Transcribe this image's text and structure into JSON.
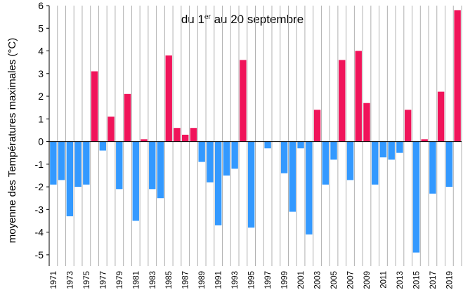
{
  "chart_data": {
    "type": "bar",
    "title_parts": [
      "du 1",
      "er",
      " au 20 septembre"
    ],
    "y_label": "moyenne des Températures maximales (°C)",
    "categories": [
      "1971",
      null,
      "1973",
      null,
      "1975",
      null,
      "1977",
      null,
      "1979",
      null,
      "1981",
      null,
      "1983",
      null,
      "1985",
      null,
      "1987",
      null,
      "1989",
      null,
      "1991",
      null,
      "1993",
      null,
      "1995",
      null,
      "1997",
      null,
      "1999",
      null,
      "2001",
      null,
      "2003",
      null,
      "2005",
      null,
      "2007",
      null,
      "2009",
      null,
      "2011",
      null,
      "2013",
      null,
      "2015",
      null,
      "2017",
      null,
      "2019",
      null
    ],
    "values": [
      -1.9,
      -1.7,
      -3.3,
      -2.0,
      -1.9,
      3.1,
      -0.4,
      1.1,
      -2.1,
      2.1,
      -3.5,
      0.1,
      -2.1,
      -2.5,
      3.8,
      0.6,
      0.3,
      0.6,
      -0.9,
      -1.8,
      -3.7,
      -1.5,
      -1.2,
      3.6,
      -3.8,
      0,
      -0.3,
      0,
      -1.4,
      -3.1,
      -0.3,
      -4.1,
      1.4,
      -1.9,
      -0.8,
      3.6,
      -1.7,
      4.0,
      1.7,
      -1.9,
      -0.7,
      -0.8,
      -0.5,
      1.4,
      -4.9,
      0.1,
      -2.3,
      2.2,
      -2.0,
      5.8
    ],
    "pos_color": "#f0145a",
    "neg_color": "#3399ff",
    "ylim": [
      -5.5,
      6
    ],
    "yticks": [
      -5,
      -4,
      -3,
      -2,
      -1,
      0,
      1,
      2,
      3,
      4,
      5,
      6
    ],
    "grid": true
  }
}
